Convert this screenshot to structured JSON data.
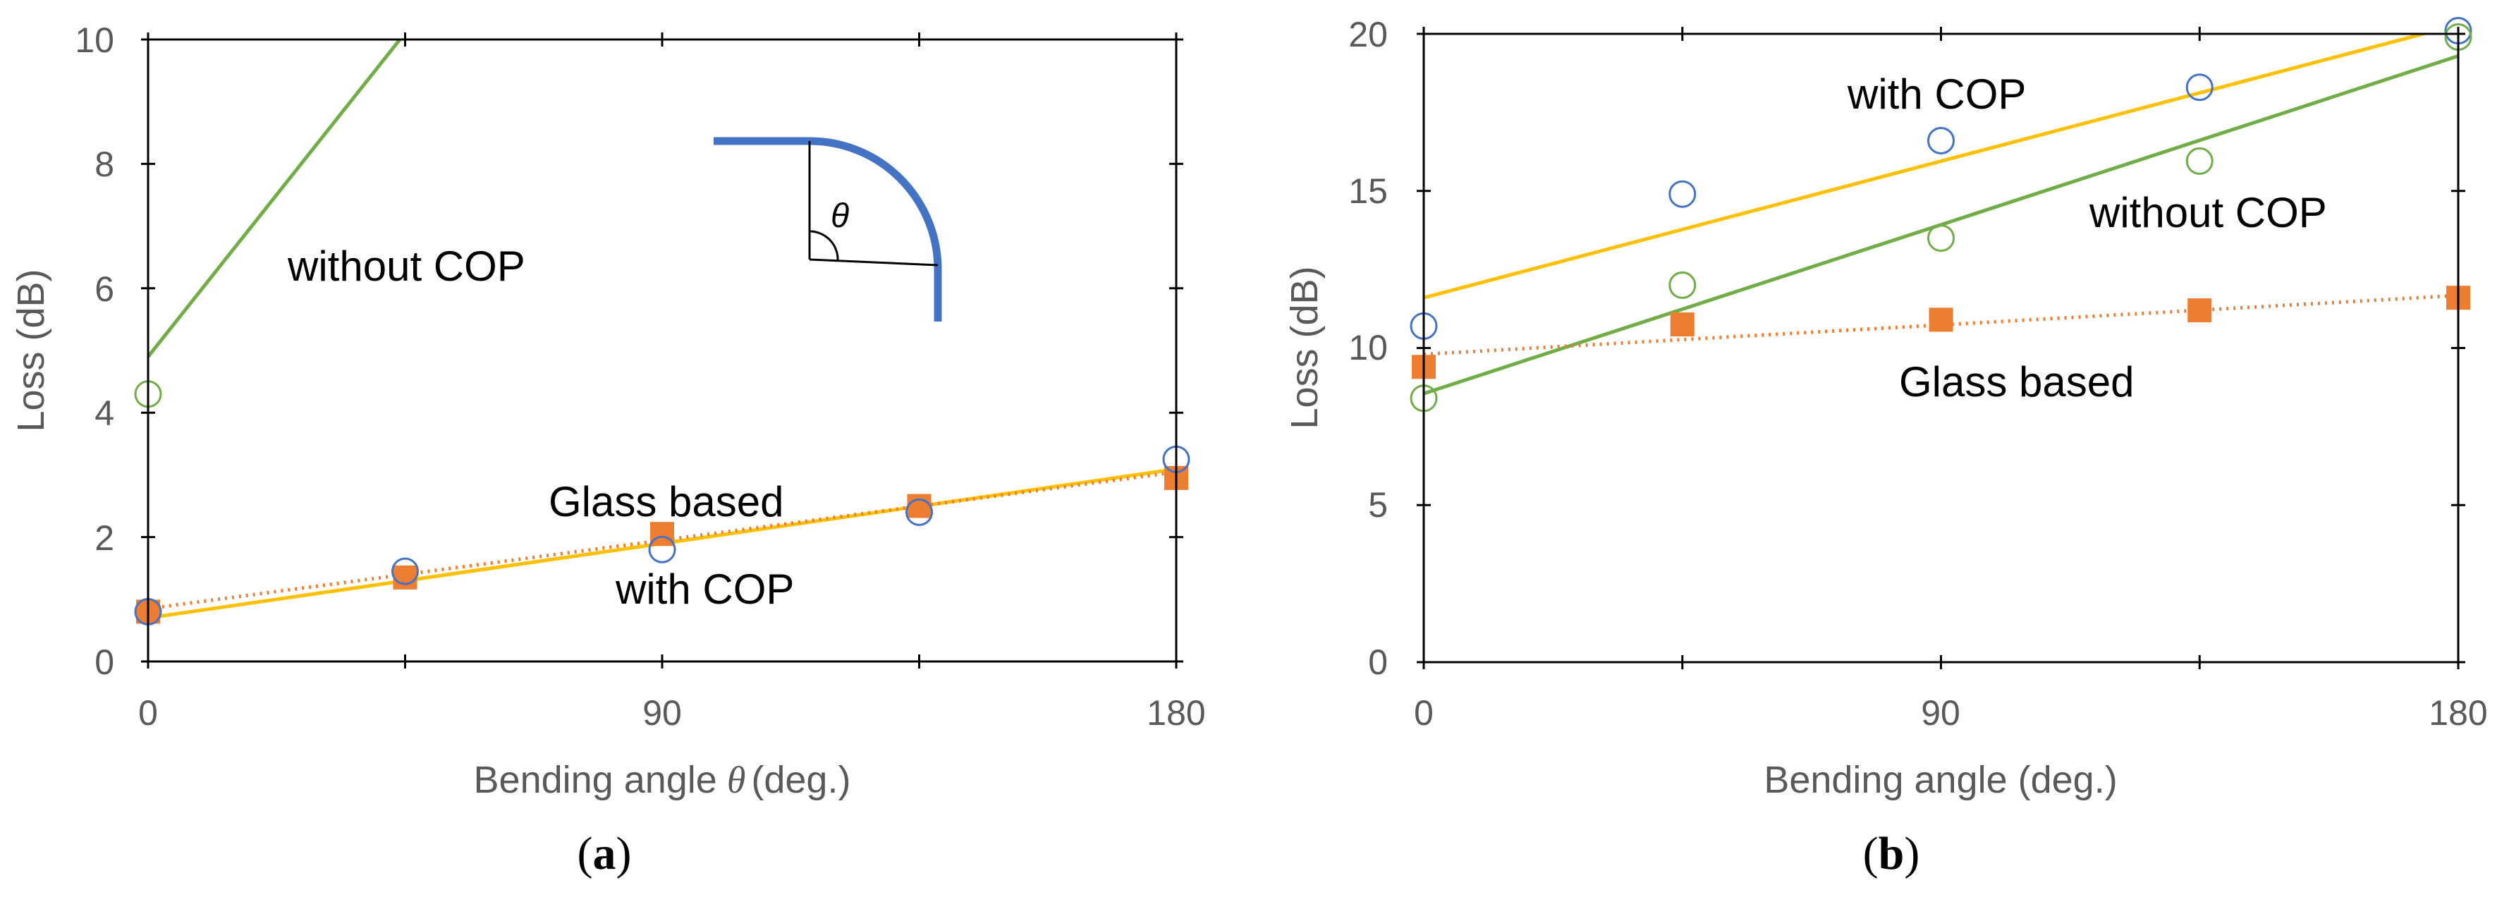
{
  "panel_labels": [
    "(a)",
    "(b)"
  ],
  "chart_data": [
    {
      "type": "scatter",
      "panel": "(a)",
      "xlabel": "Bending angle",
      "xlabel_symbol": "θ",
      "xlabel_unit": "(deg.)",
      "ylabel": "Loss (dB)",
      "xlim": [
        0,
        180
      ],
      "ylim": [
        0,
        10
      ],
      "xticks": [
        0,
        90,
        180
      ],
      "xtick_labels": [
        "0",
        "90",
        "180"
      ],
      "yticks": [
        0,
        2,
        4,
        6,
        8,
        10
      ],
      "ytick_labels": [
        "0",
        "2",
        "4",
        "6",
        "8",
        "10"
      ],
      "grid": false,
      "legend": "none",
      "series": [
        {
          "marker": "open-circle",
          "color": "#4472C4",
          "x": [
            0,
            45,
            90,
            135,
            180
          ],
          "y": [
            0.8,
            1.45,
            1.8,
            2.4,
            3.25
          ],
          "trendline": {
            "style": "solid",
            "color": "#FFC000",
            "intercept": 0.7,
            "slope": 0.0133
          }
        },
        {
          "marker": "filled-square",
          "color": "#ED7D31",
          "x": [
            0,
            45,
            90,
            135,
            180
          ],
          "y": [
            0.8,
            1.35,
            2.05,
            2.5,
            2.95
          ],
          "trendline": {
            "style": "dotted",
            "color": "#ED7D31",
            "intercept": 0.85,
            "slope": 0.0122
          }
        },
        {
          "marker": "open-circle",
          "color": "#70AD47",
          "x": [
            0
          ],
          "y": [
            4.3
          ],
          "trendline": {
            "style": "solid",
            "color": "#70AD47",
            "intercept": 4.9,
            "slope": 0.1157
          }
        }
      ],
      "annotations": [
        "without COP",
        "Glass based",
        "with COP",
        "θ"
      ]
    },
    {
      "type": "scatter",
      "panel": "(b)",
      "xlabel": "Bending angle (deg.)",
      "ylabel": "Loss (dB)",
      "xlim": [
        0,
        180
      ],
      "ylim": [
        0,
        20
      ],
      "xticks": [
        0,
        90,
        180
      ],
      "xtick_labels": [
        "0",
        "90",
        "180"
      ],
      "yticks": [
        0,
        5,
        10,
        15,
        20
      ],
      "ytick_labels": [
        "0",
        "5",
        "10",
        "15",
        "20"
      ],
      "grid": false,
      "legend": "none",
      "series": [
        {
          "marker": "open-circle",
          "color": "#4472C4",
          "x": [
            0,
            45,
            90,
            135,
            180
          ],
          "y": [
            10.7,
            14.9,
            16.6,
            18.3,
            20.1
          ],
          "trendline": {
            "style": "solid",
            "color": "#FFC000",
            "intercept": 11.6,
            "slope": 0.0483
          }
        },
        {
          "marker": "open-circle",
          "color": "#70AD47",
          "x": [
            0,
            45,
            90,
            135,
            180
          ],
          "y": [
            8.4,
            12.0,
            13.5,
            15.95,
            19.9
          ],
          "trendline": {
            "style": "solid",
            "color": "#70AD47",
            "intercept": 8.55,
            "slope": 0.0597
          }
        },
        {
          "marker": "filled-square",
          "color": "#ED7D31",
          "x": [
            0,
            45,
            90,
            135,
            180
          ],
          "y": [
            9.4,
            10.75,
            10.9,
            11.2,
            11.6
          ],
          "trendline": {
            "style": "dotted",
            "color": "#ED7D31",
            "intercept": 9.8,
            "slope": 0.0104
          }
        }
      ],
      "annotations": [
        "with COP",
        "without COP",
        "Glass based"
      ]
    }
  ]
}
